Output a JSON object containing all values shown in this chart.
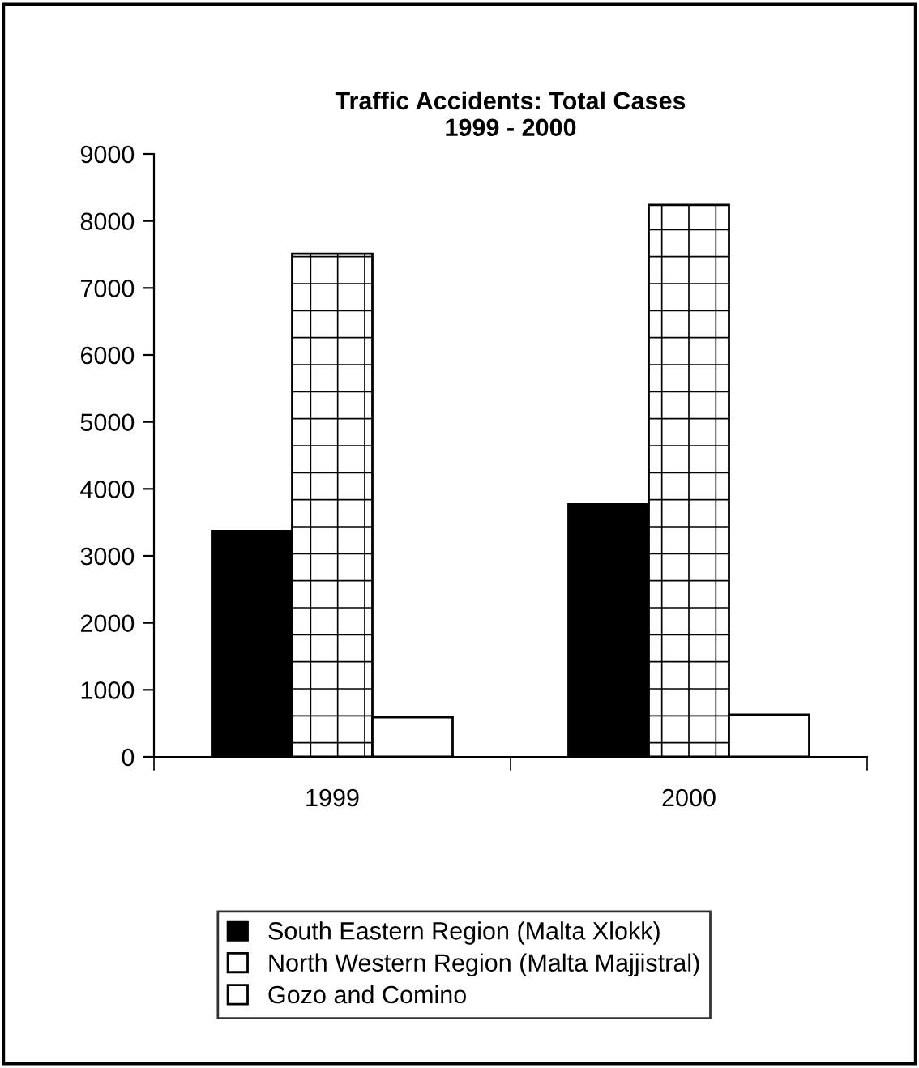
{
  "chart_data": {
    "type": "bar",
    "title": "Traffic Accidents: Total Cases\n1999 - 2000",
    "categories": [
      "1999",
      "2000"
    ],
    "series": [
      {
        "name": "South Eastern Region (Malta Xlokk)",
        "color": "#000000",
        "values": [
          3370,
          3770
        ]
      },
      {
        "name": "North Western Region (Malta Majjistral)",
        "color": "#ffffff",
        "values": [
          7510,
          8240
        ]
      },
      {
        "name": "Gozo and Comino",
        "color": "#ffffff",
        "values": [
          590,
          630
        ]
      }
    ],
    "ylim": [
      0,
      9000
    ],
    "yticks": [
      0,
      1000,
      2000,
      3000,
      4000,
      5000,
      6000,
      7000,
      8000,
      9000
    ],
    "grid": false,
    "legend": "bottom"
  }
}
